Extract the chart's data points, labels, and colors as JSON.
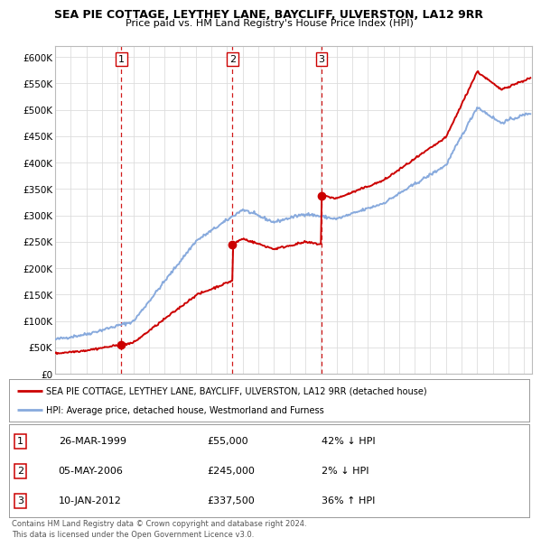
{
  "title": "SEA PIE COTTAGE, LEYTHEY LANE, BAYCLIFF, ULVERSTON, LA12 9RR",
  "subtitle": "Price paid vs. HM Land Registry's House Price Index (HPI)",
  "xlim_start": 1995.0,
  "xlim_end": 2025.5,
  "ylim": [
    0,
    620000
  ],
  "yticks": [
    0,
    50000,
    100000,
    150000,
    200000,
    250000,
    300000,
    350000,
    400000,
    450000,
    500000,
    550000,
    600000
  ],
  "ytick_labels": [
    "£0",
    "£50K",
    "£100K",
    "£150K",
    "£200K",
    "£250K",
    "£300K",
    "£350K",
    "£400K",
    "£450K",
    "£500K",
    "£550K",
    "£600K"
  ],
  "xticks": [
    1995,
    1996,
    1997,
    1998,
    1999,
    2000,
    2001,
    2002,
    2003,
    2004,
    2005,
    2006,
    2007,
    2008,
    2009,
    2010,
    2011,
    2012,
    2013,
    2014,
    2015,
    2016,
    2017,
    2018,
    2019,
    2020,
    2021,
    2022,
    2023,
    2024,
    2025
  ],
  "sale_dates": [
    1999.23,
    2006.34,
    2012.03
  ],
  "sale_prices": [
    55000,
    245000,
    337500
  ],
  "sale_labels": [
    "1",
    "2",
    "3"
  ],
  "vline_color": "#cc0000",
  "sale_marker_color": "#cc0000",
  "hpi_line_color": "#88aadd",
  "price_line_color": "#cc0000",
  "legend_entry1": "SEA PIE COTTAGE, LEYTHEY LANE, BAYCLIFF, ULVERSTON, LA12 9RR (detached house)",
  "legend_entry2": "HPI: Average price, detached house, Westmorland and Furness",
  "table_entries": [
    {
      "num": "1",
      "date": "26-MAR-1999",
      "price": "£55,000",
      "hpi": "42% ↓ HPI"
    },
    {
      "num": "2",
      "date": "05-MAY-2006",
      "price": "£245,000",
      "hpi": "2% ↓ HPI"
    },
    {
      "num": "3",
      "date": "10-JAN-2012",
      "price": "£337,500",
      "hpi": "36% ↑ HPI"
    }
  ],
  "footer": "Contains HM Land Registry data © Crown copyright and database right 2024.\nThis data is licensed under the Open Government Licence v3.0.",
  "background_color": "#ffffff",
  "plot_bg_color": "#ffffff",
  "grid_color": "#dddddd"
}
